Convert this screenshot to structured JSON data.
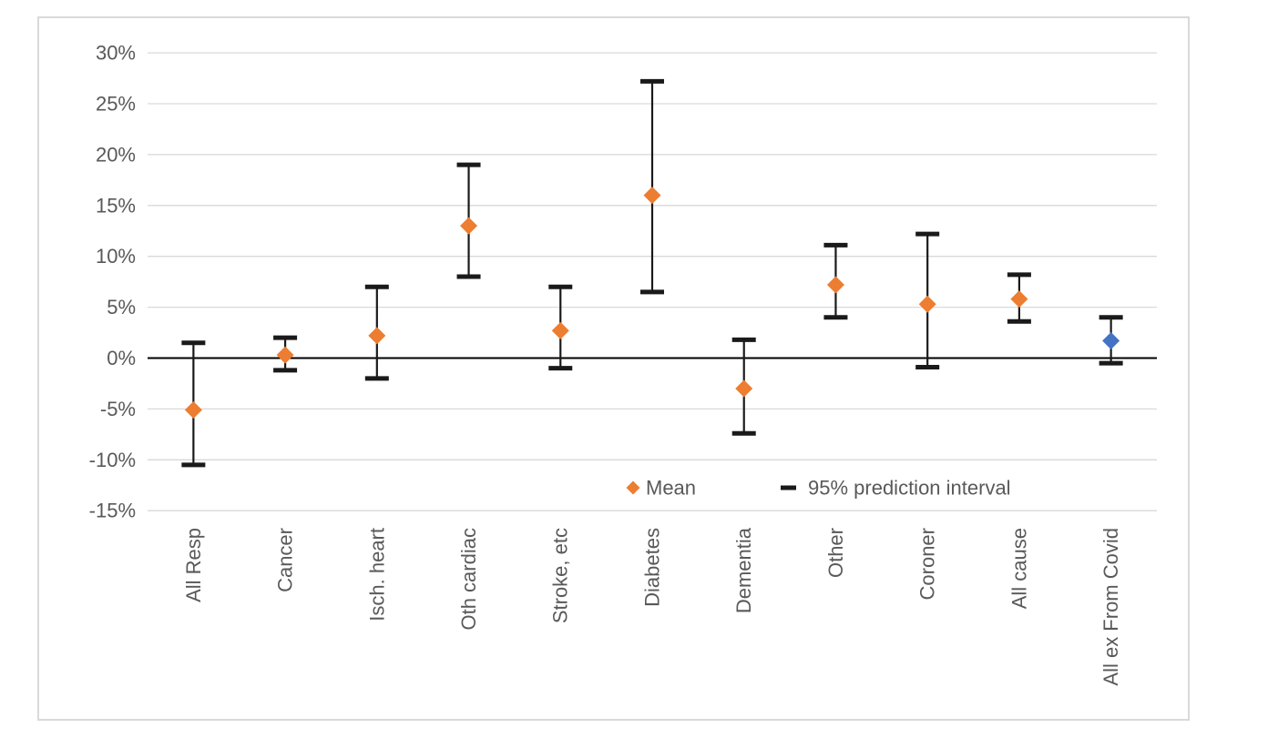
{
  "chart_data": {
    "type": "scatter",
    "subtype": "mean-with-error-bars",
    "title": "",
    "xlabel": "",
    "ylabel": "",
    "categories": [
      "All Resp",
      "Cancer",
      "Isch. heart",
      "Oth cardiac",
      "Stroke, etc",
      "Diabetes",
      "Dementia",
      "Other",
      "Coroner",
      "All cause",
      "All ex From Covid"
    ],
    "series": [
      {
        "name": "Mean",
        "values": [
          -5.1,
          0.3,
          2.2,
          13.0,
          2.7,
          16.0,
          -3.0,
          7.2,
          5.3,
          5.8,
          1.7
        ],
        "point_colors": [
          "#ED7D31",
          "#ED7D31",
          "#ED7D31",
          "#ED7D31",
          "#ED7D31",
          "#ED7D31",
          "#ED7D31",
          "#ED7D31",
          "#ED7D31",
          "#ED7D31",
          "#4472C4"
        ]
      }
    ],
    "error_bars": {
      "name": "95% prediction interval",
      "low": [
        -10.5,
        -1.2,
        -2.0,
        8.0,
        -1.0,
        6.5,
        -7.4,
        4.0,
        -0.9,
        3.6,
        -0.5
      ],
      "high": [
        1.5,
        2.0,
        7.0,
        19.0,
        7.0,
        27.2,
        1.8,
        11.1,
        12.2,
        8.2,
        4.0
      ]
    },
    "ylim": [
      -15,
      30
    ],
    "ytick_step": 5,
    "ytick_labels": [
      "30%",
      "25%",
      "20%",
      "15%",
      "10%",
      "5%",
      "0%",
      "-5%",
      "-10%",
      "-15%"
    ],
    "grid": true,
    "legend_position": "inside-bottom",
    "legend": [
      {
        "label": "Mean",
        "marker": "diamond",
        "color": "#ED7D31"
      },
      {
        "label": "95% prediction interval",
        "marker": "dash",
        "color": "#1a1a1a"
      }
    ]
  },
  "colors": {
    "mean_marker": "#ED7D31",
    "last_marker": "#4472C4",
    "error_bar": "#1a1a1a",
    "zero_axis": "#000000",
    "gridline": "#D9D9D9",
    "frame_border": "#D9D9D9",
    "tick_text": "#595959",
    "legend_text": "#595959",
    "background": "#ffffff"
  }
}
